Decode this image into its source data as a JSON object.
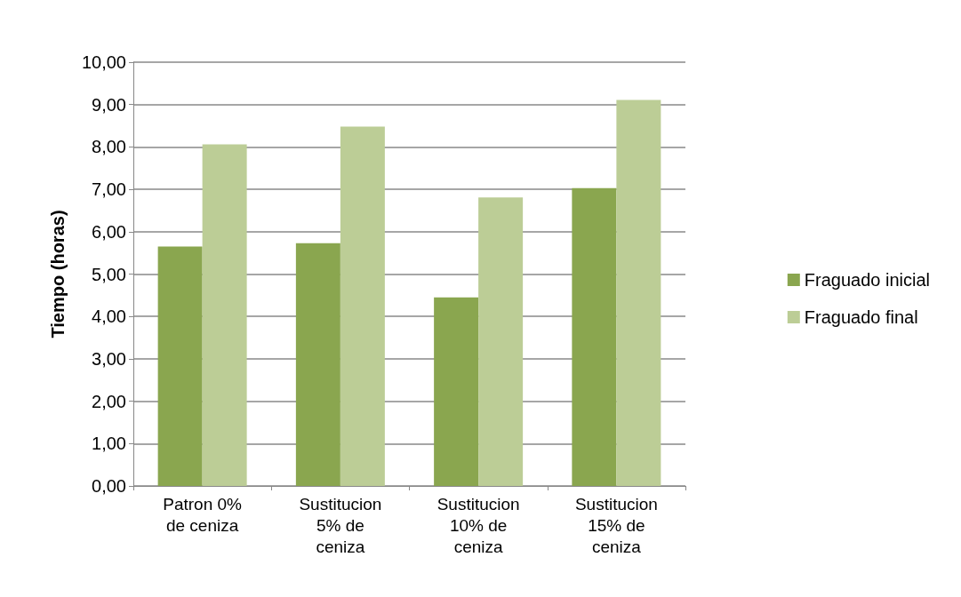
{
  "chart_data": {
    "type": "bar",
    "ylabel": "Tiempo (horas)",
    "categories": [
      "Patron 0%\nde ceniza",
      "Sustitucion\n5% de\nceniza",
      "Sustitucion\n10% de\nceniza",
      "Sustitucion\n15% de\nceniza"
    ],
    "series": [
      {
        "name": "Fraguado inicial",
        "color": "#8aa64f",
        "values": [
          5.65,
          5.73,
          4.45,
          7.03
        ]
      },
      {
        "name": "Fraguado final",
        "color": "#bccd96",
        "values": [
          8.06,
          8.48,
          6.81,
          9.11
        ]
      }
    ],
    "ylim": [
      0,
      10
    ],
    "yticks": [
      {
        "value": 0,
        "label": "0,00"
      },
      {
        "value": 1,
        "label": "1,00"
      },
      {
        "value": 2,
        "label": "2,00"
      },
      {
        "value": 3,
        "label": "3,00"
      },
      {
        "value": 4,
        "label": "4,00"
      },
      {
        "value": 5,
        "label": "5,00"
      },
      {
        "value": 6,
        "label": "6,00"
      },
      {
        "value": 7,
        "label": "7,00"
      },
      {
        "value": 8,
        "label": "8,00"
      },
      {
        "value": 9,
        "label": "9,00"
      },
      {
        "value": 10,
        "label": "10,00"
      }
    ],
    "grid": "y",
    "legend": "right"
  }
}
